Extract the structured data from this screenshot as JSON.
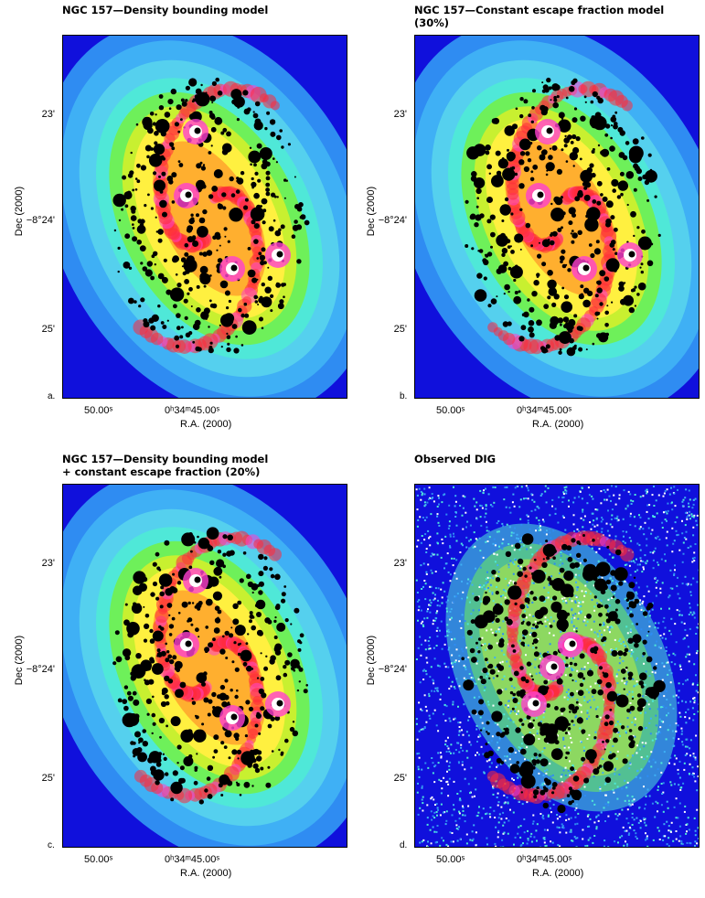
{
  "panels": [
    {
      "title_line1": "NGC 157—Density bounding model",
      "title_line2": "",
      "panel_label": "a.",
      "style": "model",
      "yticks": [
        "23'",
        "−8°24'",
        "25'"
      ],
      "ylabel": "Dec (2000)",
      "xticks": [
        "50.00ˢ",
        "0ʰ34ᵐ45.00ˢ"
      ],
      "xlabel": "R.A. (2000)"
    },
    {
      "title_line1": "NGC 157—Constant escape fraction model",
      "title_line2": "(30%)",
      "panel_label": "b.",
      "style": "model",
      "yticks": [
        "23'",
        "−8°24'",
        "25'"
      ],
      "ylabel": "Dec (2000)",
      "xticks": [
        "50.00ˢ",
        "0ʰ34ᵐ45.00ˢ"
      ],
      "xlabel": "R.A. (2000)"
    },
    {
      "title_line1": "NGC 157—Density bounding model",
      "title_line2": "+ constant escape fraction (20%)",
      "panel_label": "c.",
      "style": "model",
      "yticks": [
        "23'",
        "−8°24'",
        "25'"
      ],
      "ylabel": "Dec (2000)",
      "xticks": [
        "50.00ˢ",
        "0ʰ34ᵐ45.00ˢ"
      ],
      "xlabel": "R.A. (2000)"
    },
    {
      "title_line1": "Observed DIG",
      "title_line2": "",
      "panel_label": "d.",
      "style": "observed",
      "yticks": [
        "23'",
        "−8°24'",
        "25'"
      ],
      "ylabel": "Dec (2000)",
      "xticks": [
        "50.00ˢ",
        "0ʰ34ᵐ45.00ˢ"
      ],
      "xlabel": "R.A. (2000)"
    }
  ],
  "colors": {
    "background": "#1010dc",
    "halo_outer": "#2f8cf2",
    "halo_mid": "#3fb0f5",
    "halo_inner": "#55d0ee",
    "cyan": "#4fe8d8",
    "green": "#6ef05a",
    "yellow_green": "#c8f030",
    "yellow": "#fff040",
    "orange": "#ff9a2a",
    "red": "#ff2a3a",
    "magenta": "#ff40d0",
    "hii_regions": "#000000"
  }
}
